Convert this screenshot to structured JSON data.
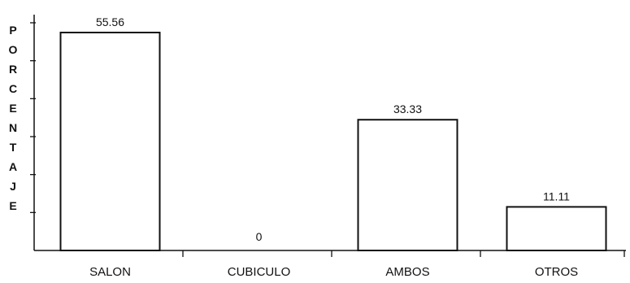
{
  "chart_data": {
    "type": "bar",
    "ylabel": "PORCENTAJE",
    "categories": [
      "SALON",
      "CUBICULO",
      "AMBOS",
      "OTROS"
    ],
    "values": [
      55.56,
      0,
      33.33,
      11.11
    ],
    "data_labels": [
      "55.56",
      "0",
      "33.33",
      "11.11"
    ],
    "ylim": [
      0,
      60
    ],
    "grid": false,
    "legend": "none",
    "colors": {
      "bar_fill": "#ffffff",
      "bar_stroke": "#111111",
      "axis": "#111111"
    }
  }
}
